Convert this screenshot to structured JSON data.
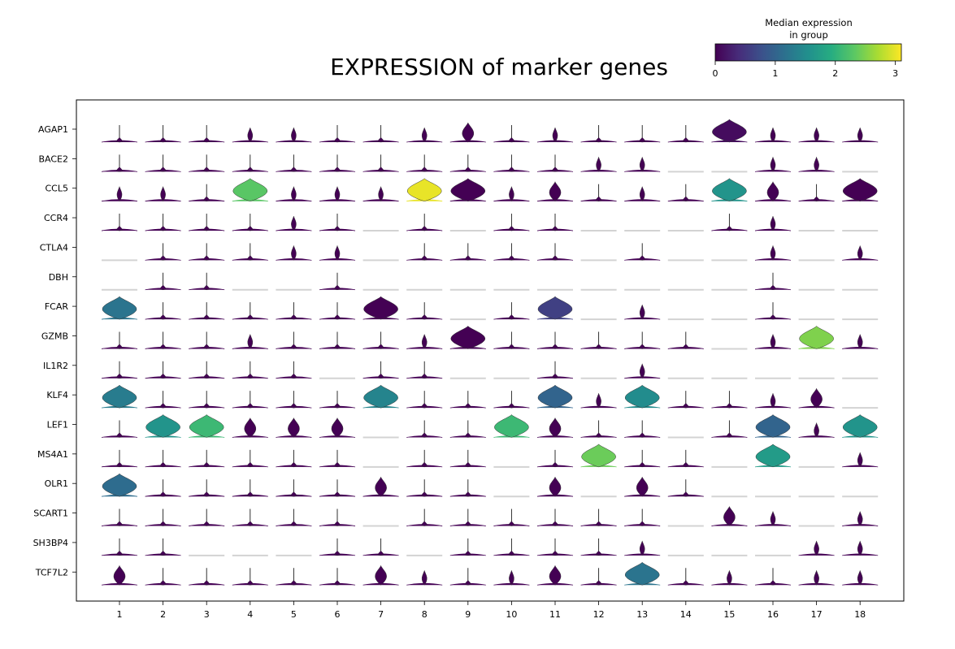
{
  "chart_data": {
    "type": "stacked-violin",
    "title": "EXPRESSION of marker genes",
    "xlabel": "",
    "ylabel": "",
    "colorbar": {
      "title_line1": "Median expression",
      "title_line2": "in group",
      "ticks": [
        "0",
        "1",
        "2",
        "3"
      ],
      "range": [
        0,
        3.1
      ],
      "colormap": "viridis"
    },
    "categories": [
      "1",
      "2",
      "3",
      "4",
      "5",
      "6",
      "7",
      "8",
      "9",
      "10",
      "11",
      "12",
      "13",
      "14",
      "15",
      "16",
      "17",
      "18"
    ],
    "genes": [
      "AGAP1",
      "BACE2",
      "CCL5",
      "CCR4",
      "CTLA4",
      "DBH",
      "FCAR",
      "GZMB",
      "IL1R2",
      "KLF4",
      "LEF1",
      "MS4A1",
      "OLR1",
      "SCART1",
      "SH3BP4",
      "TCF7L2"
    ],
    "median_expression": [
      [
        0,
        0,
        0,
        0,
        0,
        0,
        0,
        0,
        0,
        0,
        0,
        0,
        0,
        0,
        0.1,
        0,
        0,
        0
      ],
      [
        0,
        0,
        0,
        0,
        0,
        0,
        0,
        0,
        0,
        0,
        0,
        0,
        0,
        0,
        0,
        0,
        0,
        0
      ],
      [
        0,
        0,
        0,
        2.3,
        0,
        0,
        0,
        3.0,
        0,
        0,
        0,
        0,
        0,
        0,
        1.6,
        0,
        0,
        0
      ],
      [
        0,
        0,
        0,
        0,
        0,
        0,
        0,
        0,
        0,
        0,
        0,
        0,
        0,
        0,
        0,
        0,
        0,
        0
      ],
      [
        0,
        0,
        0,
        0,
        0,
        0,
        0,
        0,
        0,
        0,
        0,
        0,
        0,
        0,
        0,
        0,
        0,
        0
      ],
      [
        0,
        0,
        0,
        0,
        0,
        0,
        0,
        0,
        0,
        0,
        0,
        0,
        0,
        0,
        0,
        0,
        0,
        0
      ],
      [
        1.2,
        0,
        0,
        0,
        0,
        0,
        0,
        0,
        0,
        0,
        0.6,
        0,
        0,
        0,
        0,
        0,
        0,
        0
      ],
      [
        0,
        0,
        0,
        0,
        0,
        0,
        0,
        0,
        0,
        0,
        0,
        0,
        0,
        0,
        0,
        0,
        2.5,
        0
      ],
      [
        0,
        0,
        0,
        0,
        0,
        0,
        0,
        0,
        0,
        0,
        0,
        0,
        0,
        0,
        0,
        0,
        0,
        0
      ],
      [
        1.3,
        0,
        0,
        0,
        0,
        0,
        1.4,
        0,
        0,
        0,
        1.0,
        0,
        1.5,
        0,
        0,
        0,
        0,
        0
      ],
      [
        0,
        1.6,
        2.1,
        0,
        0,
        0,
        0,
        0,
        0,
        2.1,
        0,
        0,
        0,
        0,
        0,
        1.0,
        0,
        1.6
      ],
      [
        0,
        0,
        0,
        0,
        0,
        0,
        0,
        0,
        0,
        0,
        0,
        2.4,
        0,
        0,
        0,
        1.7,
        0,
        0
      ],
      [
        1.1,
        0,
        0,
        0,
        0,
        0,
        0,
        0,
        0,
        0,
        0,
        0,
        0,
        0,
        0,
        0,
        0,
        0
      ],
      [
        0,
        0,
        0,
        0,
        0,
        0,
        0,
        0,
        0,
        0,
        0,
        0,
        0,
        0,
        0,
        0,
        0,
        0
      ],
      [
        0,
        0,
        0,
        0,
        0,
        0,
        0,
        0,
        0,
        0,
        0,
        0,
        0,
        0,
        0,
        0,
        0,
        0
      ],
      [
        0,
        0,
        0,
        0,
        0,
        0,
        0,
        0,
        0,
        0,
        0,
        0,
        1.2,
        0,
        0,
        0,
        0,
        0
      ]
    ],
    "violin_shape": [
      [
        0,
        0,
        0,
        1,
        1,
        0,
        0,
        1,
        2,
        0,
        1,
        0,
        0,
        0,
        3,
        1,
        1,
        1
      ],
      [
        0,
        0,
        0,
        0,
        0,
        0,
        0,
        0,
        0,
        0,
        0,
        1,
        1,
        -1,
        -1,
        1,
        1,
        -1
      ],
      [
        1,
        1,
        0,
        3,
        1,
        1,
        1,
        3,
        3,
        1,
        2,
        0,
        1,
        0,
        3,
        2,
        0,
        3
      ],
      [
        0,
        0,
        0,
        0,
        1,
        0,
        -1,
        0,
        -1,
        0,
        0,
        -1,
        -1,
        -1,
        0,
        1,
        -1,
        -1
      ],
      [
        -1,
        0,
        0,
        0,
        1,
        1,
        -1,
        0,
        0,
        0,
        0,
        -1,
        0,
        -1,
        -1,
        1,
        -1,
        1
      ],
      [
        -1,
        0,
        0,
        -1,
        -1,
        0,
        -1,
        -1,
        -1,
        -1,
        -1,
        -1,
        -1,
        -1,
        -1,
        0,
        -1,
        -1
      ],
      [
        3,
        0,
        0,
        0,
        0,
        0,
        3,
        0,
        -1,
        0,
        3,
        -1,
        1,
        -1,
        -1,
        0,
        -1,
        -1
      ],
      [
        0,
        0,
        0,
        1,
        0,
        0,
        0,
        1,
        3,
        0,
        0,
        0,
        0,
        0,
        -1,
        1,
        3,
        1
      ],
      [
        0,
        0,
        0,
        0,
        0,
        -1,
        0,
        0,
        -1,
        -1,
        0,
        -1,
        1,
        -1,
        -1,
        -1,
        -1,
        -1
      ],
      [
        3,
        0,
        0,
        0,
        0,
        0,
        3,
        0,
        0,
        0,
        3,
        1,
        3,
        0,
        0,
        1,
        2,
        -1
      ],
      [
        0,
        3,
        3,
        2,
        2,
        2,
        -1,
        0,
        0,
        3,
        2,
        0,
        0,
        -1,
        0,
        3,
        1,
        3
      ],
      [
        0,
        0,
        0,
        0,
        0,
        0,
        -1,
        0,
        0,
        -1,
        0,
        3,
        0,
        0,
        -1,
        3,
        -1,
        1
      ],
      [
        3,
        0,
        0,
        0,
        0,
        0,
        2,
        0,
        0,
        -1,
        2,
        -1,
        2,
        0,
        -1,
        -1,
        -1,
        -1
      ],
      [
        0,
        0,
        0,
        0,
        0,
        0,
        -1,
        0,
        0,
        0,
        0,
        0,
        0,
        -1,
        2,
        1,
        -1,
        1
      ],
      [
        0,
        0,
        -1,
        -1,
        -1,
        0,
        0,
        -1,
        0,
        0,
        0,
        0,
        1,
        -1,
        -1,
        -1,
        1,
        1
      ],
      [
        2,
        0,
        0,
        0,
        0,
        0,
        2,
        1,
        0,
        1,
        2,
        0,
        3,
        0,
        1,
        0,
        1,
        1
      ]
    ],
    "grid": false,
    "legend": "colorbar top-right"
  }
}
